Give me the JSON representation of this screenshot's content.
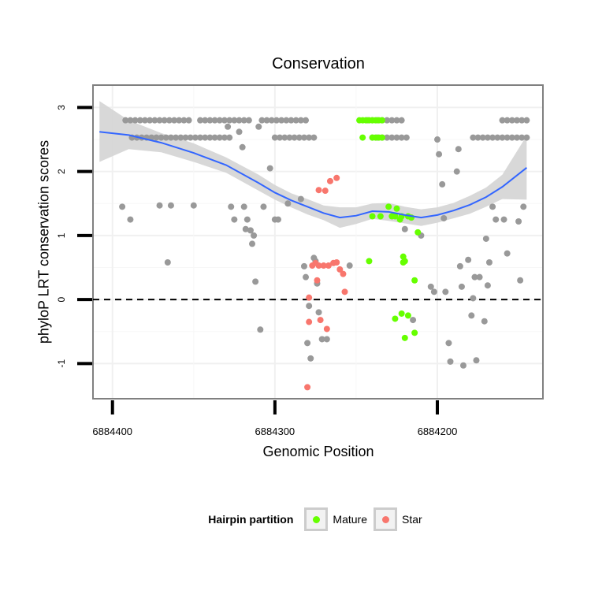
{
  "chart_data": {
    "type": "scatter",
    "title": "Conservation",
    "xlabel": "Genomic Position",
    "ylabel": "phyloP LRT conservation scores",
    "x_reversed": true,
    "xlim": [
      6884412,
      6884135
    ],
    "ylim": [
      -1.55,
      3.35
    ],
    "x_ticks": [
      6884400,
      6884300,
      6884200
    ],
    "x_tick_labels": [
      "6884400",
      "6884300",
      "6884200"
    ],
    "y_ticks": [
      -1,
      0,
      1,
      2,
      3
    ],
    "y_tick_labels": [
      "-1",
      "0",
      "1",
      "2",
      "3"
    ],
    "hline": {
      "y": 0,
      "style": "dashed"
    },
    "grid": true,
    "legend": {
      "title": "Hairpin partition",
      "position": "bottom"
    },
    "colors": {
      "unassigned": "#999999",
      "Mature": "#66ff00",
      "Star": "#f8766d",
      "smooth": "#3366ff",
      "ribbon": "#d4d4d4"
    },
    "series": [
      {
        "name": "",
        "color": "#999999",
        "points": [
          [
            6884392,
            2.8
          ],
          [
            6884389,
            2.8
          ],
          [
            6884386,
            2.8
          ],
          [
            6884383,
            2.8
          ],
          [
            6884380,
            2.8
          ],
          [
            6884377,
            2.8
          ],
          [
            6884374,
            2.8
          ],
          [
            6884371,
            2.8
          ],
          [
            6884368,
            2.8
          ],
          [
            6884365,
            2.8
          ],
          [
            6884362,
            2.8
          ],
          [
            6884359,
            2.8
          ],
          [
            6884356,
            2.8
          ],
          [
            6884353,
            2.8
          ],
          [
            6884346,
            2.8
          ],
          [
            6884343,
            2.8
          ],
          [
            6884340,
            2.8
          ],
          [
            6884337,
            2.8
          ],
          [
            6884334,
            2.8
          ],
          [
            6884331,
            2.8
          ],
          [
            6884328,
            2.8
          ],
          [
            6884325,
            2.8
          ],
          [
            6884322,
            2.8
          ],
          [
            6884319,
            2.8
          ],
          [
            6884316,
            2.8
          ],
          [
            6884308,
            2.8
          ],
          [
            6884305,
            2.8
          ],
          [
            6884302,
            2.8
          ],
          [
            6884299,
            2.8
          ],
          [
            6884296,
            2.8
          ],
          [
            6884293,
            2.8
          ],
          [
            6884290,
            2.8
          ],
          [
            6884287,
            2.8
          ],
          [
            6884284,
            2.8
          ],
          [
            6884281,
            2.8
          ],
          [
            6884243,
            2.8
          ],
          [
            6884240,
            2.8
          ],
          [
            6884237,
            2.8
          ],
          [
            6884234,
            2.8
          ],
          [
            6884231,
            2.8
          ],
          [
            6884228,
            2.8
          ],
          [
            6884225,
            2.8
          ],
          [
            6884222,
            2.8
          ],
          [
            6884160,
            2.8
          ],
          [
            6884157,
            2.8
          ],
          [
            6884154,
            2.8
          ],
          [
            6884151,
            2.8
          ],
          [
            6884148,
            2.8
          ],
          [
            6884145,
            2.8
          ],
          [
            6884388,
            2.53
          ],
          [
            6884385,
            2.53
          ],
          [
            6884382,
            2.53
          ],
          [
            6884379,
            2.53
          ],
          [
            6884376,
            2.53
          ],
          [
            6884373,
            2.53
          ],
          [
            6884370,
            2.53
          ],
          [
            6884367,
            2.53
          ],
          [
            6884364,
            2.53
          ],
          [
            6884361,
            2.53
          ],
          [
            6884358,
            2.53
          ],
          [
            6884355,
            2.53
          ],
          [
            6884352,
            2.53
          ],
          [
            6884349,
            2.53
          ],
          [
            6884346,
            2.53
          ],
          [
            6884343,
            2.53
          ],
          [
            6884340,
            2.53
          ],
          [
            6884337,
            2.53
          ],
          [
            6884334,
            2.53
          ],
          [
            6884331,
            2.53
          ],
          [
            6884328,
            2.53
          ],
          [
            6884300,
            2.53
          ],
          [
            6884297,
            2.53
          ],
          [
            6884294,
            2.53
          ],
          [
            6884291,
            2.53
          ],
          [
            6884288,
            2.53
          ],
          [
            6884285,
            2.53
          ],
          [
            6884282,
            2.53
          ],
          [
            6884279,
            2.53
          ],
          [
            6884276,
            2.53
          ],
          [
            6884240,
            2.53
          ],
          [
            6884237,
            2.53
          ],
          [
            6884234,
            2.53
          ],
          [
            6884231,
            2.53
          ],
          [
            6884228,
            2.53
          ],
          [
            6884225,
            2.53
          ],
          [
            6884222,
            2.53
          ],
          [
            6884219,
            2.53
          ],
          [
            6884178,
            2.53
          ],
          [
            6884175,
            2.53
          ],
          [
            6884172,
            2.53
          ],
          [
            6884169,
            2.53
          ],
          [
            6884166,
            2.53
          ],
          [
            6884163,
            2.53
          ],
          [
            6884160,
            2.53
          ],
          [
            6884157,
            2.53
          ],
          [
            6884154,
            2.53
          ],
          [
            6884151,
            2.53
          ],
          [
            6884148,
            2.53
          ],
          [
            6884145,
            2.53
          ],
          [
            6884394,
            1.45
          ],
          [
            6884389,
            1.25
          ],
          [
            6884371,
            1.47
          ],
          [
            6884366,
            0.58
          ],
          [
            6884364,
            1.47
          ],
          [
            6884350,
            1.47
          ],
          [
            6884329,
            2.7
          ],
          [
            6884327,
            1.45
          ],
          [
            6884325,
            1.25
          ],
          [
            6884322,
            2.62
          ],
          [
            6884320,
            2.38
          ],
          [
            6884319,
            1.45
          ],
          [
            6884318,
            1.1
          ],
          [
            6884317,
            1.25
          ],
          [
            6884315,
            1.08
          ],
          [
            6884314,
            0.87
          ],
          [
            6884313,
            1.0
          ],
          [
            6884312,
            0.28
          ],
          [
            6884310,
            2.7
          ],
          [
            6884309,
            -0.47
          ],
          [
            6884307,
            1.45
          ],
          [
            6884303,
            2.05
          ],
          [
            6884300,
            1.25
          ],
          [
            6884298,
            1.25
          ],
          [
            6884292,
            1.5
          ],
          [
            6884284,
            1.57
          ],
          [
            6884282,
            0.52
          ],
          [
            6884281,
            0.35
          ],
          [
            6884280,
            -0.68
          ],
          [
            6884279,
            -0.1
          ],
          [
            6884278,
            -0.92
          ],
          [
            6884276,
            0.65
          ],
          [
            6884275,
            0.6
          ],
          [
            6884274,
            0.25
          ],
          [
            6884273,
            -0.2
          ],
          [
            6884271,
            -0.62
          ],
          [
            6884268,
            -0.62
          ],
          [
            6884254,
            0.53
          ],
          [
            6884220,
            1.1
          ],
          [
            6884215,
            -0.32
          ],
          [
            6884210,
            1.0
          ],
          [
            6884204,
            0.2
          ],
          [
            6884202,
            0.12
          ],
          [
            6884200,
            2.5
          ],
          [
            6884199,
            2.27
          ],
          [
            6884197,
            1.8
          ],
          [
            6884196,
            1.27
          ],
          [
            6884195,
            0.12
          ],
          [
            6884193,
            -0.68
          ],
          [
            6884192,
            -0.97
          ],
          [
            6884188,
            2.0
          ],
          [
            6884187,
            2.35
          ],
          [
            6884186,
            0.52
          ],
          [
            6884185,
            0.2
          ],
          [
            6884184,
            -1.03
          ],
          [
            6884181,
            0.62
          ],
          [
            6884179,
            -0.25
          ],
          [
            6884178,
            0.02
          ],
          [
            6884177,
            0.35
          ],
          [
            6884176,
            -0.95
          ],
          [
            6884174,
            0.35
          ],
          [
            6884171,
            -0.34
          ],
          [
            6884170,
            0.95
          ],
          [
            6884169,
            0.22
          ],
          [
            6884168,
            0.58
          ],
          [
            6884166,
            1.45
          ],
          [
            6884164,
            1.25
          ],
          [
            6884159,
            1.25
          ],
          [
            6884157,
            0.72
          ],
          [
            6884150,
            1.22
          ],
          [
            6884149,
            0.3
          ],
          [
            6884147,
            1.45
          ]
        ]
      },
      {
        "name": "Mature",
        "color": "#66ff00",
        "points": [
          [
            6884248,
            2.8
          ],
          [
            6884246,
            2.8
          ],
          [
            6884244,
            2.8
          ],
          [
            6884242,
            2.8
          ],
          [
            6884240,
            2.8
          ],
          [
            6884238,
            2.8
          ],
          [
            6884236,
            2.8
          ],
          [
            6884234,
            2.8
          ],
          [
            6884246,
            2.53
          ],
          [
            6884240,
            2.53
          ],
          [
            6884238,
            2.53
          ],
          [
            6884236,
            2.53
          ],
          [
            6884234,
            2.53
          ],
          [
            6884230,
            1.45
          ],
          [
            6884228,
            1.3
          ],
          [
            6884226,
            1.3
          ],
          [
            6884225,
            1.42
          ],
          [
            6884223,
            1.25
          ],
          [
            6884222,
            1.3
          ],
          [
            6884218,
            1.3
          ],
          [
            6884216,
            1.28
          ],
          [
            6884212,
            1.05
          ],
          [
            6884240,
            1.3
          ],
          [
            6884235,
            1.3
          ],
          [
            6884220,
            0.6
          ],
          [
            6884221,
            0.58
          ],
          [
            6884221,
            0.67
          ],
          [
            6884242,
            0.6
          ],
          [
            6884214,
            0.3
          ],
          [
            6884226,
            -0.3
          ],
          [
            6884222,
            -0.22
          ],
          [
            6884218,
            -0.25
          ],
          [
            6884214,
            -0.52
          ],
          [
            6884220,
            -0.6
          ]
        ]
      },
      {
        "name": "Star",
        "color": "#f8766d",
        "points": [
          [
            6884262,
            1.9
          ],
          [
            6884266,
            1.85
          ],
          [
            6884273,
            1.71
          ],
          [
            6884269,
            1.7
          ],
          [
            6884277,
            0.53
          ],
          [
            6884275,
            0.57
          ],
          [
            6884273,
            0.53
          ],
          [
            6884270,
            0.53
          ],
          [
            6884267,
            0.53
          ],
          [
            6884264,
            0.57
          ],
          [
            6884262,
            0.58
          ],
          [
            6884260,
            0.47
          ],
          [
            6884258,
            0.4
          ],
          [
            6884257,
            0.12
          ],
          [
            6884274,
            0.3
          ],
          [
            6884279,
            0.03
          ],
          [
            6884279,
            -0.35
          ],
          [
            6884272,
            -0.32
          ],
          [
            6884268,
            -0.46
          ],
          [
            6884280,
            -1.37
          ]
        ]
      }
    ],
    "smooth": {
      "x": [
        6884408,
        6884390,
        6884370,
        6884350,
        6884330,
        6884310,
        6884300,
        6884290,
        6884280,
        6884270,
        6884260,
        6884250,
        6884240,
        6884230,
        6884220,
        6884210,
        6884200,
        6884190,
        6884180,
        6884170,
        6884160,
        6884145
      ],
      "y": [
        2.62,
        2.57,
        2.45,
        2.29,
        2.1,
        1.82,
        1.67,
        1.55,
        1.45,
        1.35,
        1.28,
        1.31,
        1.38,
        1.37,
        1.32,
        1.28,
        1.32,
        1.39,
        1.48,
        1.6,
        1.76,
        2.06
      ],
      "lower": [
        2.15,
        2.35,
        2.3,
        2.15,
        1.98,
        1.7,
        1.56,
        1.44,
        1.33,
        1.24,
        1.12,
        1.18,
        1.26,
        1.23,
        1.19,
        1.15,
        1.2,
        1.27,
        1.34,
        1.45,
        1.57,
        1.56
      ],
      "upper": [
        3.1,
        2.8,
        2.6,
        2.44,
        2.22,
        1.95,
        1.79,
        1.66,
        1.57,
        1.47,
        1.44,
        1.44,
        1.5,
        1.51,
        1.45,
        1.41,
        1.44,
        1.51,
        1.62,
        1.75,
        1.95,
        2.56
      ]
    }
  }
}
